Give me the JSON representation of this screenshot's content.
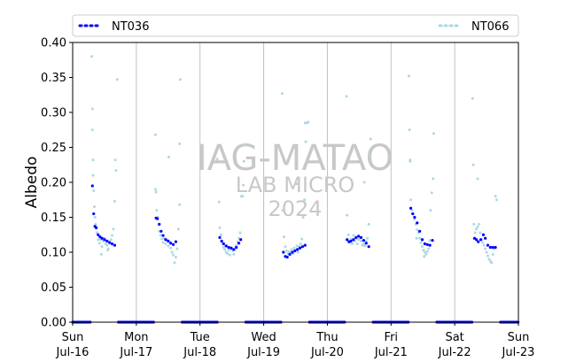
{
  "chart_data": {
    "type": "scatter",
    "title": "",
    "xlabel": "",
    "ylabel": "Albedo",
    "ylim": [
      0,
      0.4
    ],
    "yticks": [
      "0.00",
      "0.05",
      "0.10",
      "0.15",
      "0.20",
      "0.25",
      "0.30",
      "0.35",
      "0.40"
    ],
    "xlim_days": [
      0,
      7
    ],
    "xticks": [
      {
        "day": "Sun",
        "date": "Jul-16"
      },
      {
        "day": "Mon",
        "date": "Jul-17"
      },
      {
        "day": "Tue",
        "date": "Jul-18"
      },
      {
        "day": "Wed",
        "date": "Jul-19"
      },
      {
        "day": "Thu",
        "date": "Jul-20"
      },
      {
        "day": "Fri",
        "date": "Jul-21"
      },
      {
        "day": "Sat",
        "date": "Jul-22"
      },
      {
        "day": "Sun",
        "date": "Jul-23"
      }
    ],
    "grid": "vertical",
    "legend_placement": "top",
    "watermark": [
      "IAG-MATAO",
      "LAB MICRO",
      "2024"
    ],
    "series": [
      {
        "name": "NT036",
        "color": "#0000ff",
        "days": [
          [
            [
              0.31,
              0.195
            ],
            [
              0.33,
              0.155
            ],
            [
              0.35,
              0.137
            ],
            [
              0.37,
              0.135
            ],
            [
              0.4,
              0.125
            ],
            [
              0.43,
              0.122
            ],
            [
              0.46,
              0.12
            ],
            [
              0.5,
              0.118
            ],
            [
              0.54,
              0.116
            ],
            [
              0.58,
              0.114
            ],
            [
              0.62,
              0.112
            ],
            [
              0.66,
              0.11
            ]
          ],
          [
            [
              0.31,
              0.149
            ],
            [
              0.33,
              0.148
            ],
            [
              0.36,
              0.14
            ],
            [
              0.39,
              0.13
            ],
            [
              0.42,
              0.124
            ],
            [
              0.46,
              0.118
            ],
            [
              0.5,
              0.116
            ],
            [
              0.54,
              0.113
            ],
            [
              0.58,
              0.111
            ],
            [
              0.62,
              0.115
            ]
          ],
          [
            [
              0.31,
              0.121
            ],
            [
              0.34,
              0.116
            ],
            [
              0.37,
              0.112
            ],
            [
              0.41,
              0.109
            ],
            [
              0.45,
              0.107
            ],
            [
              0.49,
              0.106
            ],
            [
              0.53,
              0.104
            ],
            [
              0.57,
              0.107
            ],
            [
              0.61,
              0.113
            ],
            [
              0.64,
              0.118
            ]
          ],
          [
            [
              0.31,
              0.1
            ],
            [
              0.34,
              0.094
            ],
            [
              0.37,
              0.093
            ],
            [
              0.41,
              0.097
            ],
            [
              0.45,
              0.1
            ],
            [
              0.49,
              0.102
            ],
            [
              0.53,
              0.104
            ],
            [
              0.57,
              0.106
            ],
            [
              0.61,
              0.108
            ],
            [
              0.65,
              0.11
            ]
          ],
          [
            [
              0.31,
              0.118
            ],
            [
              0.34,
              0.115
            ],
            [
              0.37,
              0.116
            ],
            [
              0.41,
              0.118
            ],
            [
              0.45,
              0.121
            ],
            [
              0.49,
              0.123
            ],
            [
              0.53,
              0.121
            ],
            [
              0.57,
              0.117
            ],
            [
              0.61,
              0.113
            ],
            [
              0.65,
              0.108
            ]
          ],
          [
            [
              0.31,
              0.163
            ],
            [
              0.34,
              0.155
            ],
            [
              0.37,
              0.15
            ],
            [
              0.41,
              0.142
            ],
            [
              0.45,
              0.13
            ],
            [
              0.49,
              0.118
            ],
            [
              0.53,
              0.112
            ],
            [
              0.57,
              0.111
            ],
            [
              0.61,
              0.11
            ],
            [
              0.65,
              0.117
            ]
          ],
          [
            [
              0.31,
              0.12
            ],
            [
              0.34,
              0.118
            ],
            [
              0.37,
              0.115
            ],
            [
              0.41,
              0.118
            ],
            [
              0.45,
              0.125
            ],
            [
              0.48,
              0.12
            ],
            [
              0.52,
              0.11
            ],
            [
              0.56,
              0.107
            ],
            [
              0.6,
              0.107
            ],
            [
              0.64,
              0.107
            ]
          ]
        ],
        "zero_runs": [
          [
            0.0,
            0.28
          ],
          [
            0.72,
            1.28
          ],
          [
            1.72,
            2.28
          ],
          [
            2.72,
            3.28
          ],
          [
            3.72,
            4.28
          ],
          [
            4.72,
            5.28
          ],
          [
            5.72,
            6.28
          ],
          [
            6.72,
            7.0
          ]
        ]
      },
      {
        "name": "NT066",
        "color": "#add8e6",
        "days": [
          [
            [
              0.3,
              0.38
            ],
            [
              0.31,
              0.305
            ],
            [
              0.31,
              0.275
            ],
            [
              0.32,
              0.232
            ],
            [
              0.32,
              0.21
            ],
            [
              0.33,
              0.188
            ],
            [
              0.34,
              0.165
            ],
            [
              0.35,
              0.15
            ],
            [
              0.36,
              0.14
            ],
            [
              0.38,
              0.128
            ],
            [
              0.4,
              0.118
            ],
            [
              0.42,
              0.113
            ],
            [
              0.44,
              0.118
            ],
            [
              0.46,
              0.108
            ],
            [
              0.48,
              0.116
            ],
            [
              0.5,
              0.12
            ],
            [
              0.52,
              0.112
            ],
            [
              0.54,
              0.11
            ],
            [
              0.56,
              0.105
            ],
            [
              0.58,
              0.113
            ],
            [
              0.6,
              0.118
            ],
            [
              0.62,
              0.124
            ],
            [
              0.64,
              0.133
            ],
            [
              0.66,
              0.173
            ],
            [
              0.67,
              0.232
            ],
            [
              0.68,
              0.217
            ],
            [
              0.7,
              0.347
            ],
            [
              0.45,
              0.097
            ],
            [
              0.55,
              0.103
            ]
          ],
          [
            [
              0.3,
              0.268
            ],
            [
              0.3,
              0.19
            ],
            [
              0.31,
              0.186
            ],
            [
              0.32,
              0.16
            ],
            [
              0.34,
              0.15
            ],
            [
              0.36,
              0.13
            ],
            [
              0.38,
              0.124
            ],
            [
              0.4,
              0.119
            ],
            [
              0.42,
              0.114
            ],
            [
              0.44,
              0.12
            ],
            [
              0.46,
              0.112
            ],
            [
              0.48,
              0.118
            ],
            [
              0.5,
              0.109
            ],
            [
              0.52,
              0.115
            ],
            [
              0.54,
              0.106
            ],
            [
              0.56,
              0.1
            ],
            [
              0.58,
              0.096
            ],
            [
              0.6,
              0.085
            ],
            [
              0.62,
              0.093
            ],
            [
              0.64,
              0.105
            ],
            [
              0.66,
              0.133
            ],
            [
              0.68,
              0.168
            ],
            [
              0.68,
              0.255
            ],
            [
              0.69,
              0.347
            ],
            [
              0.51,
              0.236
            ]
          ],
          [
            [
              0.3,
              0.172
            ],
            [
              0.31,
              0.135
            ],
            [
              0.33,
              0.125
            ],
            [
              0.35,
              0.114
            ],
            [
              0.37,
              0.107
            ],
            [
              0.39,
              0.104
            ],
            [
              0.41,
              0.1
            ],
            [
              0.43,
              0.098
            ],
            [
              0.45,
              0.103
            ],
            [
              0.47,
              0.096
            ],
            [
              0.49,
              0.105
            ],
            [
              0.51,
              0.102
            ],
            [
              0.53,
              0.097
            ],
            [
              0.55,
              0.104
            ],
            [
              0.57,
              0.11
            ],
            [
              0.59,
              0.115
            ],
            [
              0.61,
              0.12
            ],
            [
              0.63,
              0.128
            ],
            [
              0.65,
              0.18
            ],
            [
              0.67,
              0.18
            ],
            [
              0.68,
              0.196
            ],
            [
              0.69,
              0.23
            ],
            [
              0.7,
              0.253
            ],
            [
              0.27,
              0.233
            ]
          ],
          [
            [
              0.29,
              0.327
            ],
            [
              0.3,
              0.16
            ],
            [
              0.32,
              0.122
            ],
            [
              0.34,
              0.108
            ],
            [
              0.36,
              0.102
            ],
            [
              0.38,
              0.098
            ],
            [
              0.4,
              0.101
            ],
            [
              0.42,
              0.1
            ],
            [
              0.44,
              0.104
            ],
            [
              0.46,
              0.098
            ],
            [
              0.48,
              0.106
            ],
            [
              0.5,
              0.103
            ],
            [
              0.52,
              0.109
            ],
            [
              0.54,
              0.1
            ],
            [
              0.56,
              0.108
            ],
            [
              0.58,
              0.112
            ],
            [
              0.6,
              0.119
            ],
            [
              0.62,
              0.15
            ],
            [
              0.64,
              0.175
            ],
            [
              0.65,
              0.285
            ],
            [
              0.67,
              0.285
            ],
            [
              0.68,
              0.285
            ],
            [
              0.7,
              0.286
            ],
            [
              0.52,
              0.198
            ],
            [
              0.66,
              0.258
            ]
          ],
          [
            [
              0.3,
              0.323
            ],
            [
              0.31,
              0.153
            ],
            [
              0.33,
              0.125
            ],
            [
              0.35,
              0.114
            ],
            [
              0.37,
              0.119
            ],
            [
              0.39,
              0.112
            ],
            [
              0.41,
              0.124
            ],
            [
              0.43,
              0.116
            ],
            [
              0.45,
              0.12
            ],
            [
              0.47,
              0.112
            ],
            [
              0.49,
              0.118
            ],
            [
              0.51,
              0.12
            ],
            [
              0.53,
              0.116
            ],
            [
              0.55,
              0.11
            ],
            [
              0.57,
              0.112
            ],
            [
              0.59,
              0.109
            ],
            [
              0.61,
              0.116
            ],
            [
              0.63,
              0.12
            ],
            [
              0.65,
              0.14
            ],
            [
              0.66,
              0.24
            ],
            [
              0.68,
              0.262
            ],
            [
              0.58,
              0.2
            ]
          ],
          [
            [
              0.28,
              0.352
            ],
            [
              0.29,
              0.275
            ],
            [
              0.3,
              0.232
            ],
            [
              0.3,
              0.23
            ],
            [
              0.31,
              0.175
            ],
            [
              0.33,
              0.16
            ],
            [
              0.35,
              0.155
            ],
            [
              0.37,
              0.147
            ],
            [
              0.39,
              0.14
            ],
            [
              0.41,
              0.132
            ],
            [
              0.43,
              0.128
            ],
            [
              0.45,
              0.12
            ],
            [
              0.47,
              0.114
            ],
            [
              0.49,
              0.108
            ],
            [
              0.51,
              0.103
            ],
            [
              0.53,
              0.1
            ],
            [
              0.55,
              0.097
            ],
            [
              0.57,
              0.101
            ],
            [
              0.59,
              0.105
            ],
            [
              0.61,
              0.117
            ],
            [
              0.62,
              0.16
            ],
            [
              0.64,
              0.185
            ],
            [
              0.66,
              0.205
            ],
            [
              0.67,
              0.27
            ],
            [
              0.4,
              0.12
            ],
            [
              0.52,
              0.094
            ]
          ],
          [
            [
              0.28,
              0.32
            ],
            [
              0.29,
              0.225
            ],
            [
              0.3,
              0.14
            ],
            [
              0.32,
              0.128
            ],
            [
              0.34,
              0.133
            ],
            [
              0.36,
              0.136
            ],
            [
              0.38,
              0.14
            ],
            [
              0.4,
              0.128
            ],
            [
              0.42,
              0.118
            ],
            [
              0.44,
              0.114
            ],
            [
              0.46,
              0.11
            ],
            [
              0.48,
              0.105
            ],
            [
              0.5,
              0.1
            ],
            [
              0.52,
              0.095
            ],
            [
              0.54,
              0.09
            ],
            [
              0.56,
              0.087
            ],
            [
              0.58,
              0.085
            ],
            [
              0.6,
              0.097
            ],
            [
              0.62,
              0.105
            ],
            [
              0.64,
              0.18
            ],
            [
              0.66,
              0.175
            ],
            [
              0.36,
              0.205
            ]
          ]
        ],
        "zero_runs": [
          [
            0.0,
            0.28
          ],
          [
            0.72,
            1.28
          ],
          [
            1.72,
            2.28
          ],
          [
            2.72,
            3.28
          ],
          [
            3.72,
            4.28
          ],
          [
            4.72,
            5.28
          ],
          [
            5.72,
            6.28
          ],
          [
            6.72,
            7.0
          ]
        ]
      }
    ]
  }
}
